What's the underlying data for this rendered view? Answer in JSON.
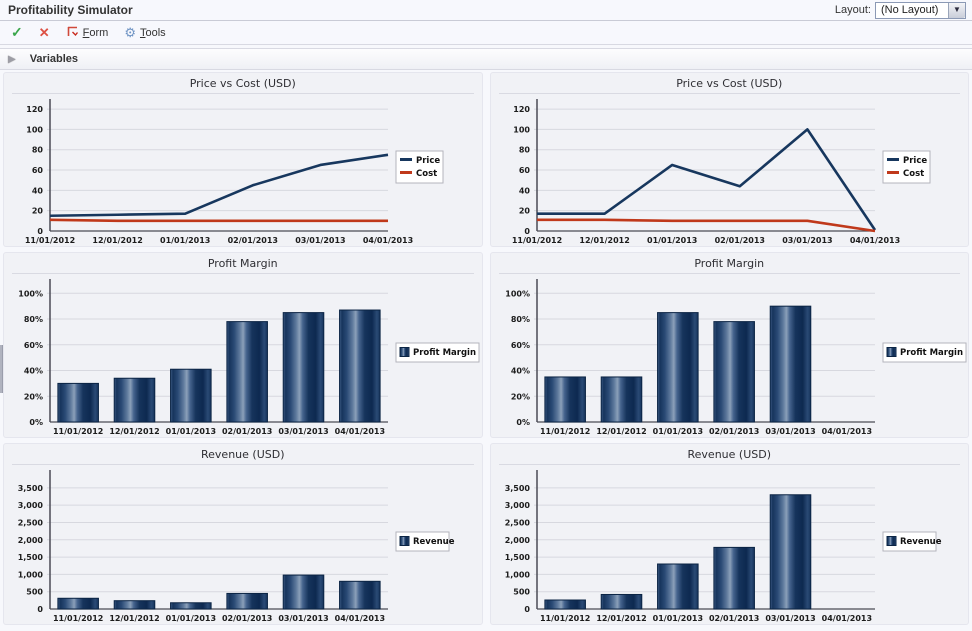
{
  "header": {
    "title": "Profitability Simulator",
    "layout_label": "Layout:",
    "layout_value": "(No Layout)",
    "layout_arrow": "▼"
  },
  "toolbar": {
    "ok_glyph": "✓",
    "cancel_glyph": "✕",
    "form_first": "F",
    "form_rest": "orm",
    "tools_first": "T",
    "tools_rest": "ools",
    "tools_glyph": "⚙"
  },
  "variables": {
    "collapse_glyph": "▶",
    "label": "Variables"
  },
  "colors": {
    "accent_green": "#3aa64b",
    "accent_red": "#dd5144",
    "tools_blue": "#6f94c4",
    "axis": "#4b4b55",
    "grid": "#d7d8df",
    "price": "#17375e",
    "cost": "#c0391b",
    "bar_border": "#0b2444",
    "bar_stops": [
      [
        "0%",
        "#3f5c85"
      ],
      [
        "6%",
        "#16345c"
      ],
      [
        "18%",
        "#2a4a75"
      ],
      [
        "32%",
        "#5f7a9d"
      ],
      [
        "40%",
        "#8ba0b9"
      ],
      [
        "48%",
        "#46648e"
      ],
      [
        "62%",
        "#16345c"
      ],
      [
        "80%",
        "#0d2950"
      ],
      [
        "92%",
        "#2a4a75"
      ],
      [
        "100%",
        "#16345c"
      ]
    ]
  },
  "chart_data": [
    {
      "type": "line",
      "title": "Price vs Cost (USD)",
      "categories": [
        "11/01/2012",
        "12/01/2012",
        "01/01/2013",
        "02/01/2013",
        "03/01/2013",
        "04/01/2013"
      ],
      "series": [
        {
          "name": "Price",
          "color": "#17375e",
          "values": [
            15,
            16,
            17,
            45,
            65,
            75
          ]
        },
        {
          "name": "Cost",
          "color": "#c0391b",
          "values": [
            11,
            10,
            10,
            10,
            10,
            10
          ]
        }
      ],
      "ylim": [
        0,
        126
      ],
      "yticks": [
        0,
        20,
        40,
        60,
        80,
        100,
        120
      ],
      "ytick_labels": [
        "0",
        "20",
        "40",
        "60",
        "80",
        "100",
        "120"
      ],
      "legend_position": "right",
      "grid": true
    },
    {
      "type": "line",
      "title": "Price vs Cost (USD)",
      "categories": [
        "11/01/2012",
        "12/01/2012",
        "01/01/2013",
        "02/01/2013",
        "03/01/2013",
        "04/01/2013"
      ],
      "series": [
        {
          "name": "Price",
          "color": "#17375e",
          "values": [
            17,
            17,
            65,
            44,
            100,
            1
          ]
        },
        {
          "name": "Cost",
          "color": "#c0391b",
          "values": [
            11,
            11,
            10,
            10,
            10,
            0
          ]
        }
      ],
      "ylim": [
        0,
        126
      ],
      "yticks": [
        0,
        20,
        40,
        60,
        80,
        100,
        120
      ],
      "ytick_labels": [
        "0",
        "20",
        "40",
        "60",
        "80",
        "100",
        "120"
      ],
      "legend_position": "right",
      "grid": true
    },
    {
      "type": "bar",
      "title": "Profit Margin",
      "categories": [
        "11/01/2012",
        "12/01/2012",
        "01/01/2013",
        "02/01/2013",
        "03/01/2013",
        "04/01/2013"
      ],
      "series": [
        {
          "name": "Profit Margin",
          "values": [
            30,
            34,
            41,
            78,
            85,
            87
          ]
        }
      ],
      "ylim": [
        0,
        108
      ],
      "yticks": [
        0,
        20,
        40,
        60,
        80,
        100
      ],
      "ytick_labels": [
        "0%",
        "20%",
        "40%",
        "60%",
        "80%",
        "100%"
      ],
      "legend_position": "right",
      "grid": true
    },
    {
      "type": "bar",
      "title": "Profit Margin",
      "categories": [
        "11/01/2012",
        "12/01/2012",
        "01/01/2013",
        "02/01/2013",
        "03/01/2013",
        "04/01/2013"
      ],
      "series": [
        {
          "name": "Profit Margin",
          "values": [
            35,
            35,
            85,
            78,
            90,
            0
          ]
        }
      ],
      "ylim": [
        0,
        108
      ],
      "yticks": [
        0,
        20,
        40,
        60,
        80,
        100
      ],
      "ytick_labels": [
        "0%",
        "20%",
        "40%",
        "60%",
        "80%",
        "100%"
      ],
      "legend_position": "right",
      "grid": true
    },
    {
      "type": "bar",
      "title": "Revenue (USD)",
      "categories": [
        "11/01/2012",
        "12/01/2012",
        "01/01/2013",
        "02/01/2013",
        "03/01/2013",
        "04/01/2013"
      ],
      "series": [
        {
          "name": "Revenue",
          "values": [
            310,
            240,
            180,
            450,
            980,
            800
          ]
        }
      ],
      "ylim": [
        0,
        3900
      ],
      "yticks": [
        0,
        500,
        1000,
        1500,
        2000,
        2500,
        3000,
        3500
      ],
      "ytick_labels": [
        "0",
        "500",
        "1,000",
        "1,500",
        "2,000",
        "2,500",
        "3,000",
        "3,500"
      ],
      "legend_position": "right",
      "grid": true
    },
    {
      "type": "bar",
      "title": "Revenue (USD)",
      "categories": [
        "11/01/2012",
        "12/01/2012",
        "01/01/2013",
        "02/01/2013",
        "03/01/2013",
        "04/01/2013"
      ],
      "series": [
        {
          "name": "Revenue",
          "values": [
            260,
            420,
            1300,
            1780,
            3300,
            0
          ]
        }
      ],
      "ylim": [
        0,
        3900
      ],
      "yticks": [
        0,
        500,
        1000,
        1500,
        2000,
        2500,
        3000,
        3500
      ],
      "ytick_labels": [
        "0",
        "500",
        "1,000",
        "1,500",
        "2,000",
        "2,500",
        "3,000",
        "3,500"
      ],
      "legend_position": "right",
      "grid": true
    }
  ]
}
